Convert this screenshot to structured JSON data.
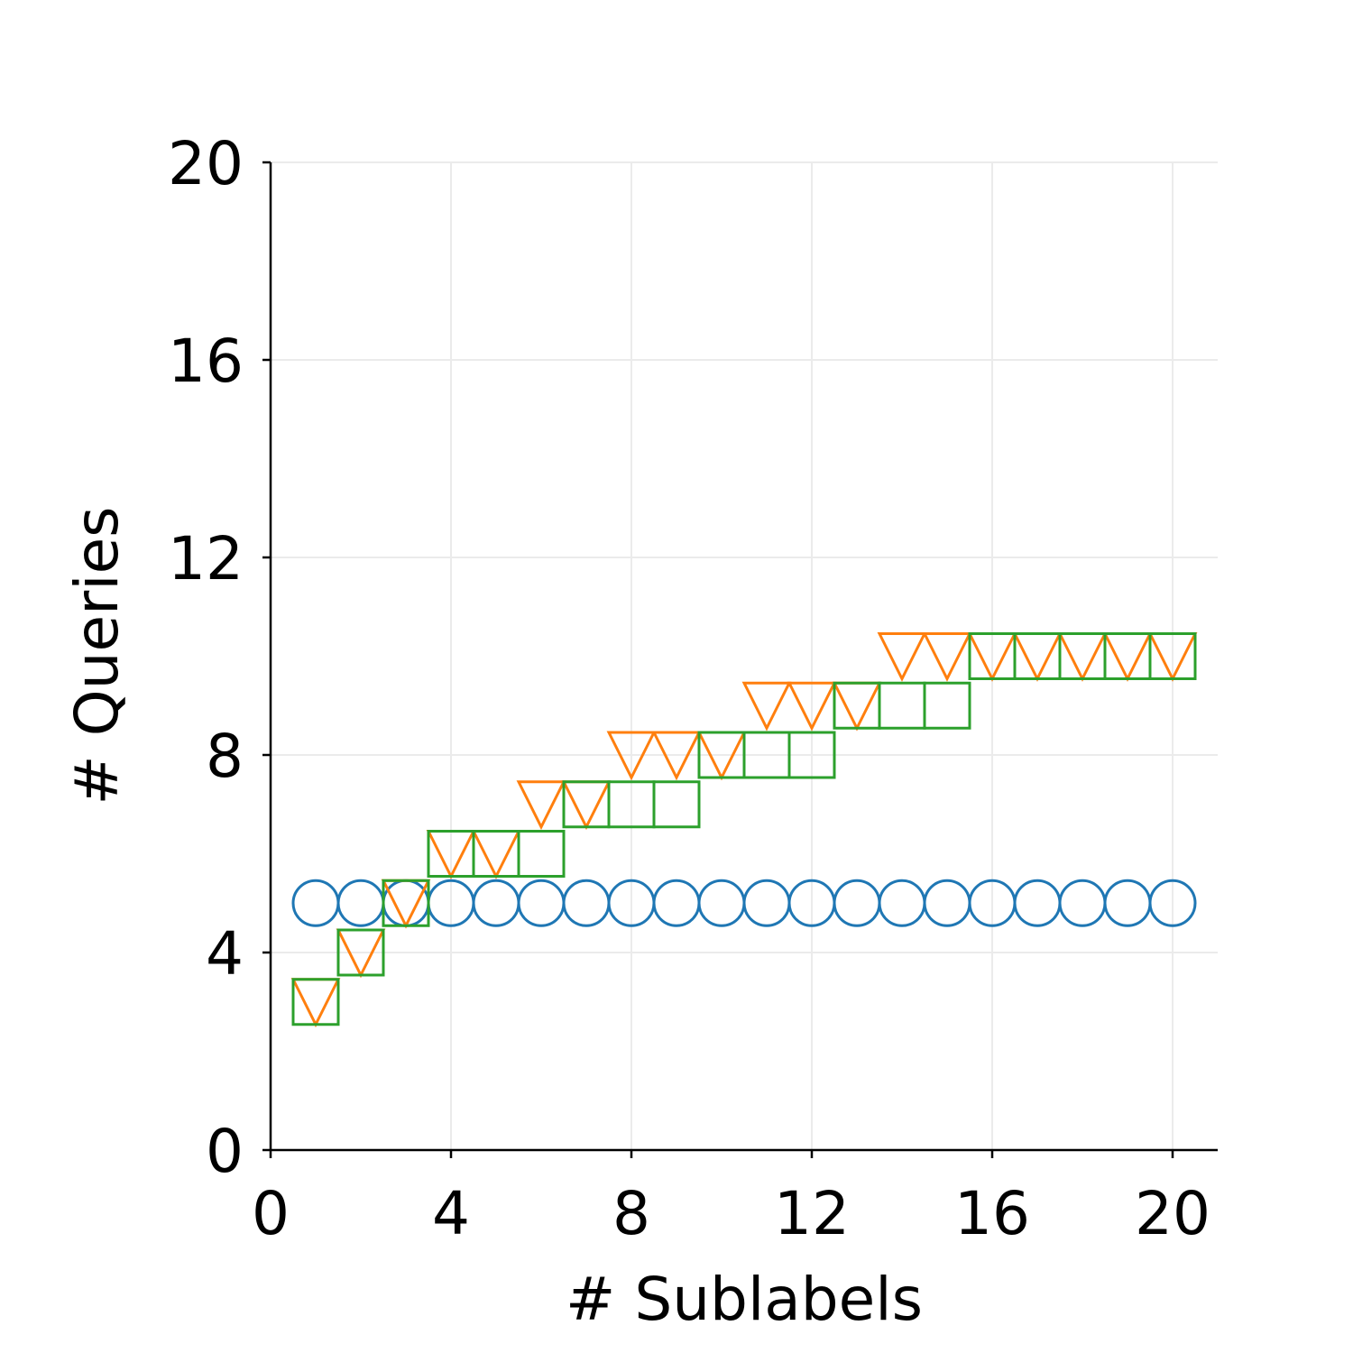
{
  "chart_data": {
    "type": "scatter",
    "title": "",
    "xlabel": "# Sublabels",
    "ylabel": "# Queries",
    "xlim": [
      0,
      21
    ],
    "ylim": [
      0,
      20
    ],
    "xticks": [
      "0",
      "4",
      "8",
      "12",
      "16",
      "20"
    ],
    "yticks": [
      "0",
      "4",
      "8",
      "12",
      "16",
      "20"
    ],
    "grid": true,
    "x": [
      1,
      2,
      3,
      4,
      5,
      6,
      7,
      8,
      9,
      10,
      11,
      12,
      13,
      14,
      15,
      16,
      17,
      18,
      19,
      20
    ],
    "series": [
      {
        "marker": "circle",
        "color": "#1f77b4",
        "values": [
          5,
          5,
          5,
          5,
          5,
          5,
          5,
          5,
          5,
          5,
          5,
          5,
          5,
          5,
          5,
          5,
          5,
          5,
          5,
          5
        ]
      },
      {
        "marker": "triangle-down",
        "color": "#ff7f0e",
        "values": [
          3,
          4,
          5,
          6,
          6,
          7,
          7,
          8,
          8,
          8,
          9,
          9,
          9,
          10,
          10,
          10,
          10,
          10,
          10,
          10
        ]
      },
      {
        "marker": "square",
        "color": "#2ca02c",
        "values": [
          3,
          4,
          5,
          6,
          6,
          6,
          7,
          7,
          7,
          8,
          8,
          8,
          9,
          9,
          9,
          10,
          10,
          10,
          10,
          10
        ]
      }
    ]
  }
}
